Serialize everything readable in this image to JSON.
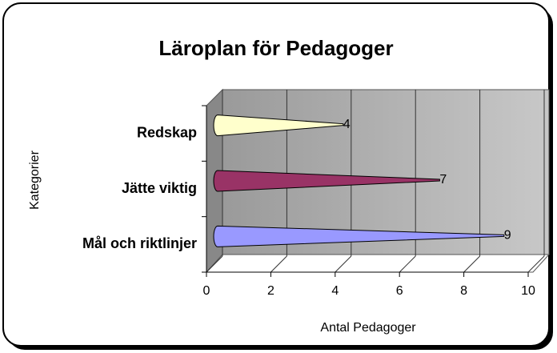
{
  "chart_data": {
    "type": "bar",
    "orientation": "horizontal",
    "title": "Läroplan för Pedagoger",
    "x_label": "Antal Pedagoger",
    "y_label": "Kategorier",
    "categories": [
      "Mål och riktlinjer",
      "Jätte viktig",
      "Redskap"
    ],
    "values": [
      9,
      7,
      4
    ],
    "colors": [
      "#9999ff",
      "#993366",
      "#ffffcc"
    ],
    "xlim": [
      0,
      10
    ],
    "xticks": [
      0,
      2,
      4,
      6,
      8,
      10
    ],
    "grid": true
  }
}
